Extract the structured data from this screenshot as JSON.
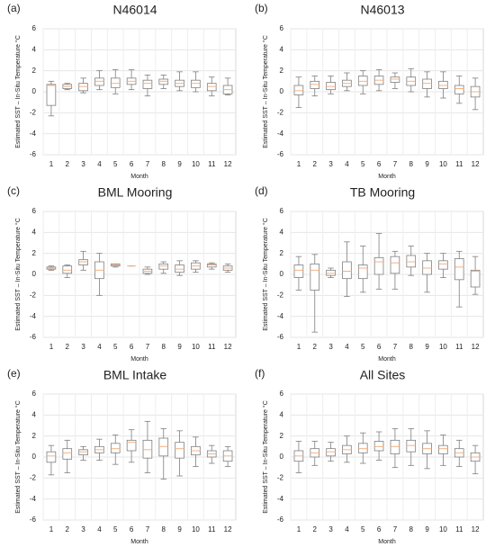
{
  "chart_data": [
    {
      "type": "box",
      "label": "(a)",
      "title": "N46014",
      "xlabel": "Month",
      "ylabel": "Estimated SST – In-Situ Temperature °C",
      "categories": [
        "1",
        "2",
        "3",
        "4",
        "5",
        "6",
        "7",
        "8",
        "9",
        "10",
        "11",
        "12"
      ],
      "min": [
        -2.3,
        0.2,
        -0.1,
        0.2,
        -0.2,
        0.2,
        -0.4,
        0.3,
        0.1,
        0.0,
        -0.4,
        -0.3
      ],
      "q1": [
        -1.3,
        0.3,
        0.1,
        0.6,
        0.4,
        0.7,
        0.3,
        0.7,
        0.5,
        0.4,
        0.1,
        -0.2
      ],
      "median": [
        0.6,
        0.5,
        0.5,
        1.0,
        0.8,
        1.0,
        0.8,
        1.0,
        0.8,
        0.8,
        0.5,
        0.2
      ],
      "q3": [
        0.7,
        0.7,
        0.8,
        1.3,
        1.3,
        1.3,
        1.1,
        1.2,
        1.1,
        1.1,
        0.8,
        0.6
      ],
      "max": [
        1.0,
        0.8,
        1.3,
        2.0,
        2.1,
        2.1,
        1.6,
        1.6,
        1.9,
        1.9,
        1.4,
        1.3
      ],
      "ylim": [
        -6,
        6
      ],
      "yticks": [
        -6,
        -4,
        -2,
        0,
        2,
        4,
        6
      ],
      "grid": true,
      "box_color": "#7f7f7f",
      "median_color": "#f4b183"
    },
    {
      "type": "box",
      "label": "(b)",
      "title": "N46013",
      "xlabel": "Month",
      "ylabel": "Estimated SST – In-Situ Temperature °C",
      "categories": [
        "1",
        "2",
        "3",
        "4",
        "5",
        "6",
        "7",
        "8",
        "9",
        "10",
        "11",
        "12"
      ],
      "min": [
        -1.5,
        -0.4,
        -0.2,
        0.1,
        -0.2,
        0.1,
        0.3,
        0.0,
        -0.5,
        -0.6,
        -1.1,
        -1.7
      ],
      "q1": [
        -0.3,
        0.3,
        0.2,
        0.5,
        0.6,
        0.7,
        0.9,
        0.6,
        0.3,
        0.3,
        -0.2,
        -0.5
      ],
      "median": [
        0.1,
        0.7,
        0.5,
        0.8,
        1.0,
        1.1,
        1.2,
        1.0,
        0.8,
        0.6,
        0.3,
        0.0
      ],
      "q3": [
        0.6,
        1.0,
        0.9,
        1.1,
        1.5,
        1.5,
        1.4,
        1.4,
        1.2,
        1.0,
        0.6,
        0.5
      ],
      "max": [
        1.4,
        1.5,
        1.5,
        1.8,
        2.0,
        2.1,
        1.8,
        2.2,
        1.9,
        1.9,
        1.5,
        1.3
      ],
      "ylim": [
        -6,
        6
      ],
      "yticks": [
        -6,
        -4,
        -2,
        0,
        2,
        4,
        6
      ],
      "grid": true,
      "box_color": "#7f7f7f",
      "median_color": "#f4b183"
    },
    {
      "type": "box",
      "label": "(c)",
      "title": "BML Mooring",
      "xlabel": "Month",
      "ylabel": "Estimated SST – In-Situ Temperature °C",
      "categories": [
        "1",
        "2",
        "3",
        "4",
        "5",
        "6",
        "7",
        "8",
        "9",
        "10",
        "11",
        "12"
      ],
      "min": [
        0.4,
        -0.3,
        0.4,
        -2.0,
        0.7,
        0.8,
        0.0,
        0.1,
        -0.1,
        0.2,
        0.5,
        0.2
      ],
      "q1": [
        0.5,
        0.1,
        0.9,
        -0.4,
        0.8,
        0.8,
        0.1,
        0.5,
        0.2,
        0.5,
        0.7,
        0.4
      ],
      "median": [
        0.6,
        0.4,
        1.2,
        0.4,
        0.9,
        0.8,
        0.3,
        0.8,
        0.5,
        0.8,
        0.9,
        0.6
      ],
      "q3": [
        0.7,
        0.8,
        1.4,
        1.2,
        1.0,
        0.8,
        0.5,
        1.0,
        0.9,
        1.1,
        1.0,
        0.8
      ],
      "max": [
        0.8,
        0.9,
        2.2,
        2.0,
        1.0,
        0.8,
        0.7,
        1.2,
        1.3,
        1.3,
        1.1,
        1.0
      ],
      "ylim": [
        -6,
        6
      ],
      "yticks": [
        -6,
        -4,
        -2,
        0,
        2,
        4,
        6
      ],
      "grid": true,
      "box_color": "#7f7f7f",
      "median_color": "#f4b183"
    },
    {
      "type": "box",
      "label": "(d)",
      "title": "TB Mooring",
      "xlabel": "Month",
      "ylabel": "Estimated SST – In-Situ Temperature °C",
      "categories": [
        "1",
        "2",
        "3",
        "4",
        "5",
        "6",
        "7",
        "8",
        "9",
        "10",
        "11",
        "12"
      ],
      "min": [
        -1.5,
        -5.5,
        -0.3,
        -2.1,
        -1.7,
        -1.4,
        -1.4,
        -0.1,
        -1.7,
        -0.3,
        -3.1,
        -1.9
      ],
      "q1": [
        -0.3,
        -1.5,
        -0.1,
        -0.4,
        -0.4,
        0.0,
        0.1,
        0.7,
        0.0,
        0.5,
        -0.5,
        -1.2
      ],
      "median": [
        0.4,
        0.4,
        0.1,
        0.3,
        0.6,
        1.2,
        1.1,
        1.2,
        0.6,
        1.0,
        0.7,
        0.3
      ],
      "q3": [
        0.9,
        1.0,
        0.4,
        1.2,
        0.9,
        1.6,
        1.7,
        1.8,
        1.3,
        1.3,
        1.5,
        0.4
      ],
      "max": [
        1.7,
        1.9,
        0.6,
        3.1,
        2.7,
        3.9,
        2.2,
        2.7,
        2.0,
        2.0,
        2.2,
        1.7
      ],
      "ylim": [
        -6,
        6
      ],
      "yticks": [
        -6,
        -4,
        -2,
        0,
        2,
        4,
        6
      ],
      "grid": true,
      "box_color": "#7f7f7f",
      "median_color": "#f4b183"
    },
    {
      "type": "box",
      "label": "(e)",
      "title": "BML Intake",
      "xlabel": "Month",
      "ylabel": "Estimated SST – In-Situ Temperature °C",
      "categories": [
        "1",
        "2",
        "3",
        "4",
        "5",
        "6",
        "7",
        "8",
        "9",
        "10",
        "11",
        "12"
      ],
      "min": [
        -1.7,
        -1.5,
        -0.3,
        -0.3,
        -0.7,
        -0.5,
        -1.5,
        -2.1,
        -1.8,
        -0.9,
        -0.6,
        -0.9
      ],
      "q1": [
        -0.5,
        -0.2,
        0.2,
        0.4,
        0.4,
        0.6,
        -0.1,
        0.1,
        -0.1,
        0.2,
        0.0,
        -0.4
      ],
      "median": [
        0.1,
        0.4,
        0.5,
        0.7,
        0.8,
        1.4,
        0.7,
        1.0,
        0.8,
        0.6,
        0.3,
        0.1
      ],
      "q3": [
        0.5,
        0.8,
        0.7,
        1.0,
        1.3,
        1.6,
        1.6,
        1.8,
        1.4,
        1.0,
        0.6,
        0.6
      ],
      "max": [
        1.1,
        1.6,
        1.0,
        1.7,
        2.1,
        2.6,
        3.4,
        2.7,
        2.5,
        1.9,
        1.1,
        1.0
      ],
      "ylim": [
        -6,
        6
      ],
      "yticks": [
        -6,
        -4,
        -2,
        0,
        2,
        4,
        6
      ],
      "grid": true,
      "box_color": "#7f7f7f",
      "median_color": "#f4b183"
    },
    {
      "type": "box",
      "label": "(f)",
      "title": "All Sites",
      "xlabel": "Month",
      "ylabel": "Estimated SST – In-Situ Temperature °C",
      "categories": [
        "1",
        "2",
        "3",
        "4",
        "5",
        "6",
        "7",
        "8",
        "9",
        "10",
        "11",
        "12"
      ],
      "min": [
        -1.5,
        -0.8,
        -0.4,
        -0.5,
        -0.6,
        -0.3,
        -1.0,
        -0.8,
        -1.1,
        -0.8,
        -0.9,
        -1.6
      ],
      "q1": [
        -0.4,
        0.0,
        0.1,
        0.3,
        0.4,
        0.6,
        0.3,
        0.5,
        0.3,
        0.3,
        0.0,
        -0.4
      ],
      "median": [
        0.1,
        0.4,
        0.5,
        0.7,
        0.8,
        1.0,
        1.0,
        1.1,
        0.8,
        0.8,
        0.4,
        0.0
      ],
      "q3": [
        0.6,
        0.8,
        0.8,
        1.1,
        1.3,
        1.5,
        1.6,
        1.6,
        1.3,
        1.1,
        0.8,
        0.4
      ],
      "max": [
        1.5,
        1.5,
        1.4,
        2.0,
        2.3,
        2.4,
        2.7,
        2.7,
        2.5,
        2.1,
        1.6,
        1.1
      ],
      "ylim": [
        -6,
        6
      ],
      "yticks": [
        -6,
        -4,
        -2,
        0,
        2,
        4,
        6
      ],
      "grid": true,
      "box_color": "#7f7f7f",
      "median_color": "#f4b183"
    }
  ]
}
